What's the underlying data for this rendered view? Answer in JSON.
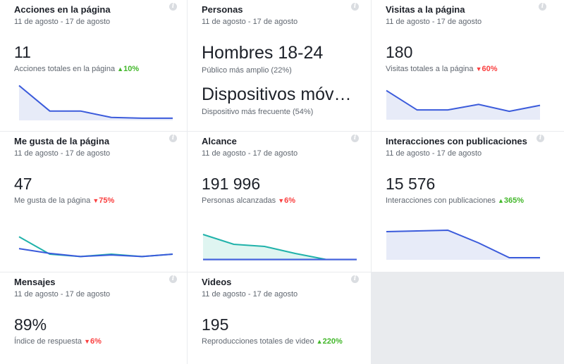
{
  "cards": [
    {
      "title": "Acciones en la página",
      "date": "11 de agosto - 17 de agosto",
      "value": "11",
      "sub": "Acciones totales en la página",
      "trend": "10%",
      "trend_dir": "up",
      "chart_data": {
        "type": "area",
        "series": [
          {
            "values": [
              4.2,
              1.0,
              1.0,
              0.2,
              0.1,
              0.1
            ]
          }
        ],
        "ylim": [
          0,
          4.6
        ]
      }
    },
    {
      "title": "Personas",
      "date": "11 de agosto - 17 de agosto",
      "value": "Hombres 18-24",
      "sub": "Público más amplio (22%)",
      "value2": "Dispositivos móv…",
      "sub2": "Dispositivo más frecuente (54%)"
    },
    {
      "title": "Visitas a la página",
      "date": "11 de agosto - 17 de agosto",
      "value": "180",
      "sub": "Visitas totales a la página",
      "trend": "60%",
      "trend_dir": "down",
      "chart_data": {
        "type": "area",
        "series": [
          {
            "values": [
              80,
              38,
              38,
              50,
              35,
              48
            ]
          }
        ],
        "ylim": [
          20,
          90
        ]
      }
    },
    {
      "title": "Me gusta de la página",
      "date": "11 de agosto - 17 de agosto",
      "value": "47",
      "sub": "Me gusta de la página",
      "trend": "75%",
      "trend_dir": "down",
      "chart_data": {
        "type": "line",
        "series": [
          {
            "color": "#20b2aa",
            "values": [
              30,
              8,
              5,
              8,
              5,
              8
            ]
          },
          {
            "color": "#3b5bdb",
            "values": [
              15,
              9,
              5,
              7,
              5,
              8
            ]
          }
        ],
        "ylim": [
          0,
          32
        ]
      }
    },
    {
      "title": "Alcance",
      "date": "11 de agosto - 17 de agosto",
      "value": "191 996",
      "sub": "Personas alcanzadas",
      "trend": "6%",
      "trend_dir": "down",
      "chart_data": {
        "type": "area",
        "series": [
          {
            "color": "#20b2aa",
            "values": [
              36,
              22,
              19,
              9,
              0.5,
              0.5
            ]
          },
          {
            "color": "#3b5bdb",
            "values": [
              0.5,
              0.5,
              0.5,
              0.5,
              0.5,
              0.5
            ]
          }
        ],
        "ylim": [
          0,
          38
        ]
      }
    },
    {
      "title": "Interacciones con publicaciones",
      "date": "11 de agosto - 17 de agosto",
      "value": "15 576",
      "sub": "Interacciones con publicaciones",
      "trend": "365%",
      "trend_dir": "up",
      "chart_data": {
        "type": "area",
        "series": [
          {
            "values": [
              38,
              39,
              40,
              22,
              1,
              1
            ]
          }
        ],
        "ylim": [
          0,
          42
        ]
      }
    },
    {
      "title": "Mensajes",
      "date": "11 de agosto - 17 de agosto",
      "value": "89%",
      "sub": "Índice de respuesta",
      "trend": "6%",
      "trend_dir": "down"
    },
    {
      "title": "Videos",
      "date": "11 de agosto - 17 de agosto",
      "value": "195",
      "sub": "Reproducciones totales de video",
      "trend": "220%",
      "trend_dir": "up"
    }
  ],
  "info_icon": "i",
  "colors": {
    "line": "#3b5bdb",
    "fill": "#e7ebf8",
    "teal": "#20b2aa",
    "teal_fill": "#dff5f1",
    "up": "#42b72a",
    "down": "#fa3e3e"
  }
}
